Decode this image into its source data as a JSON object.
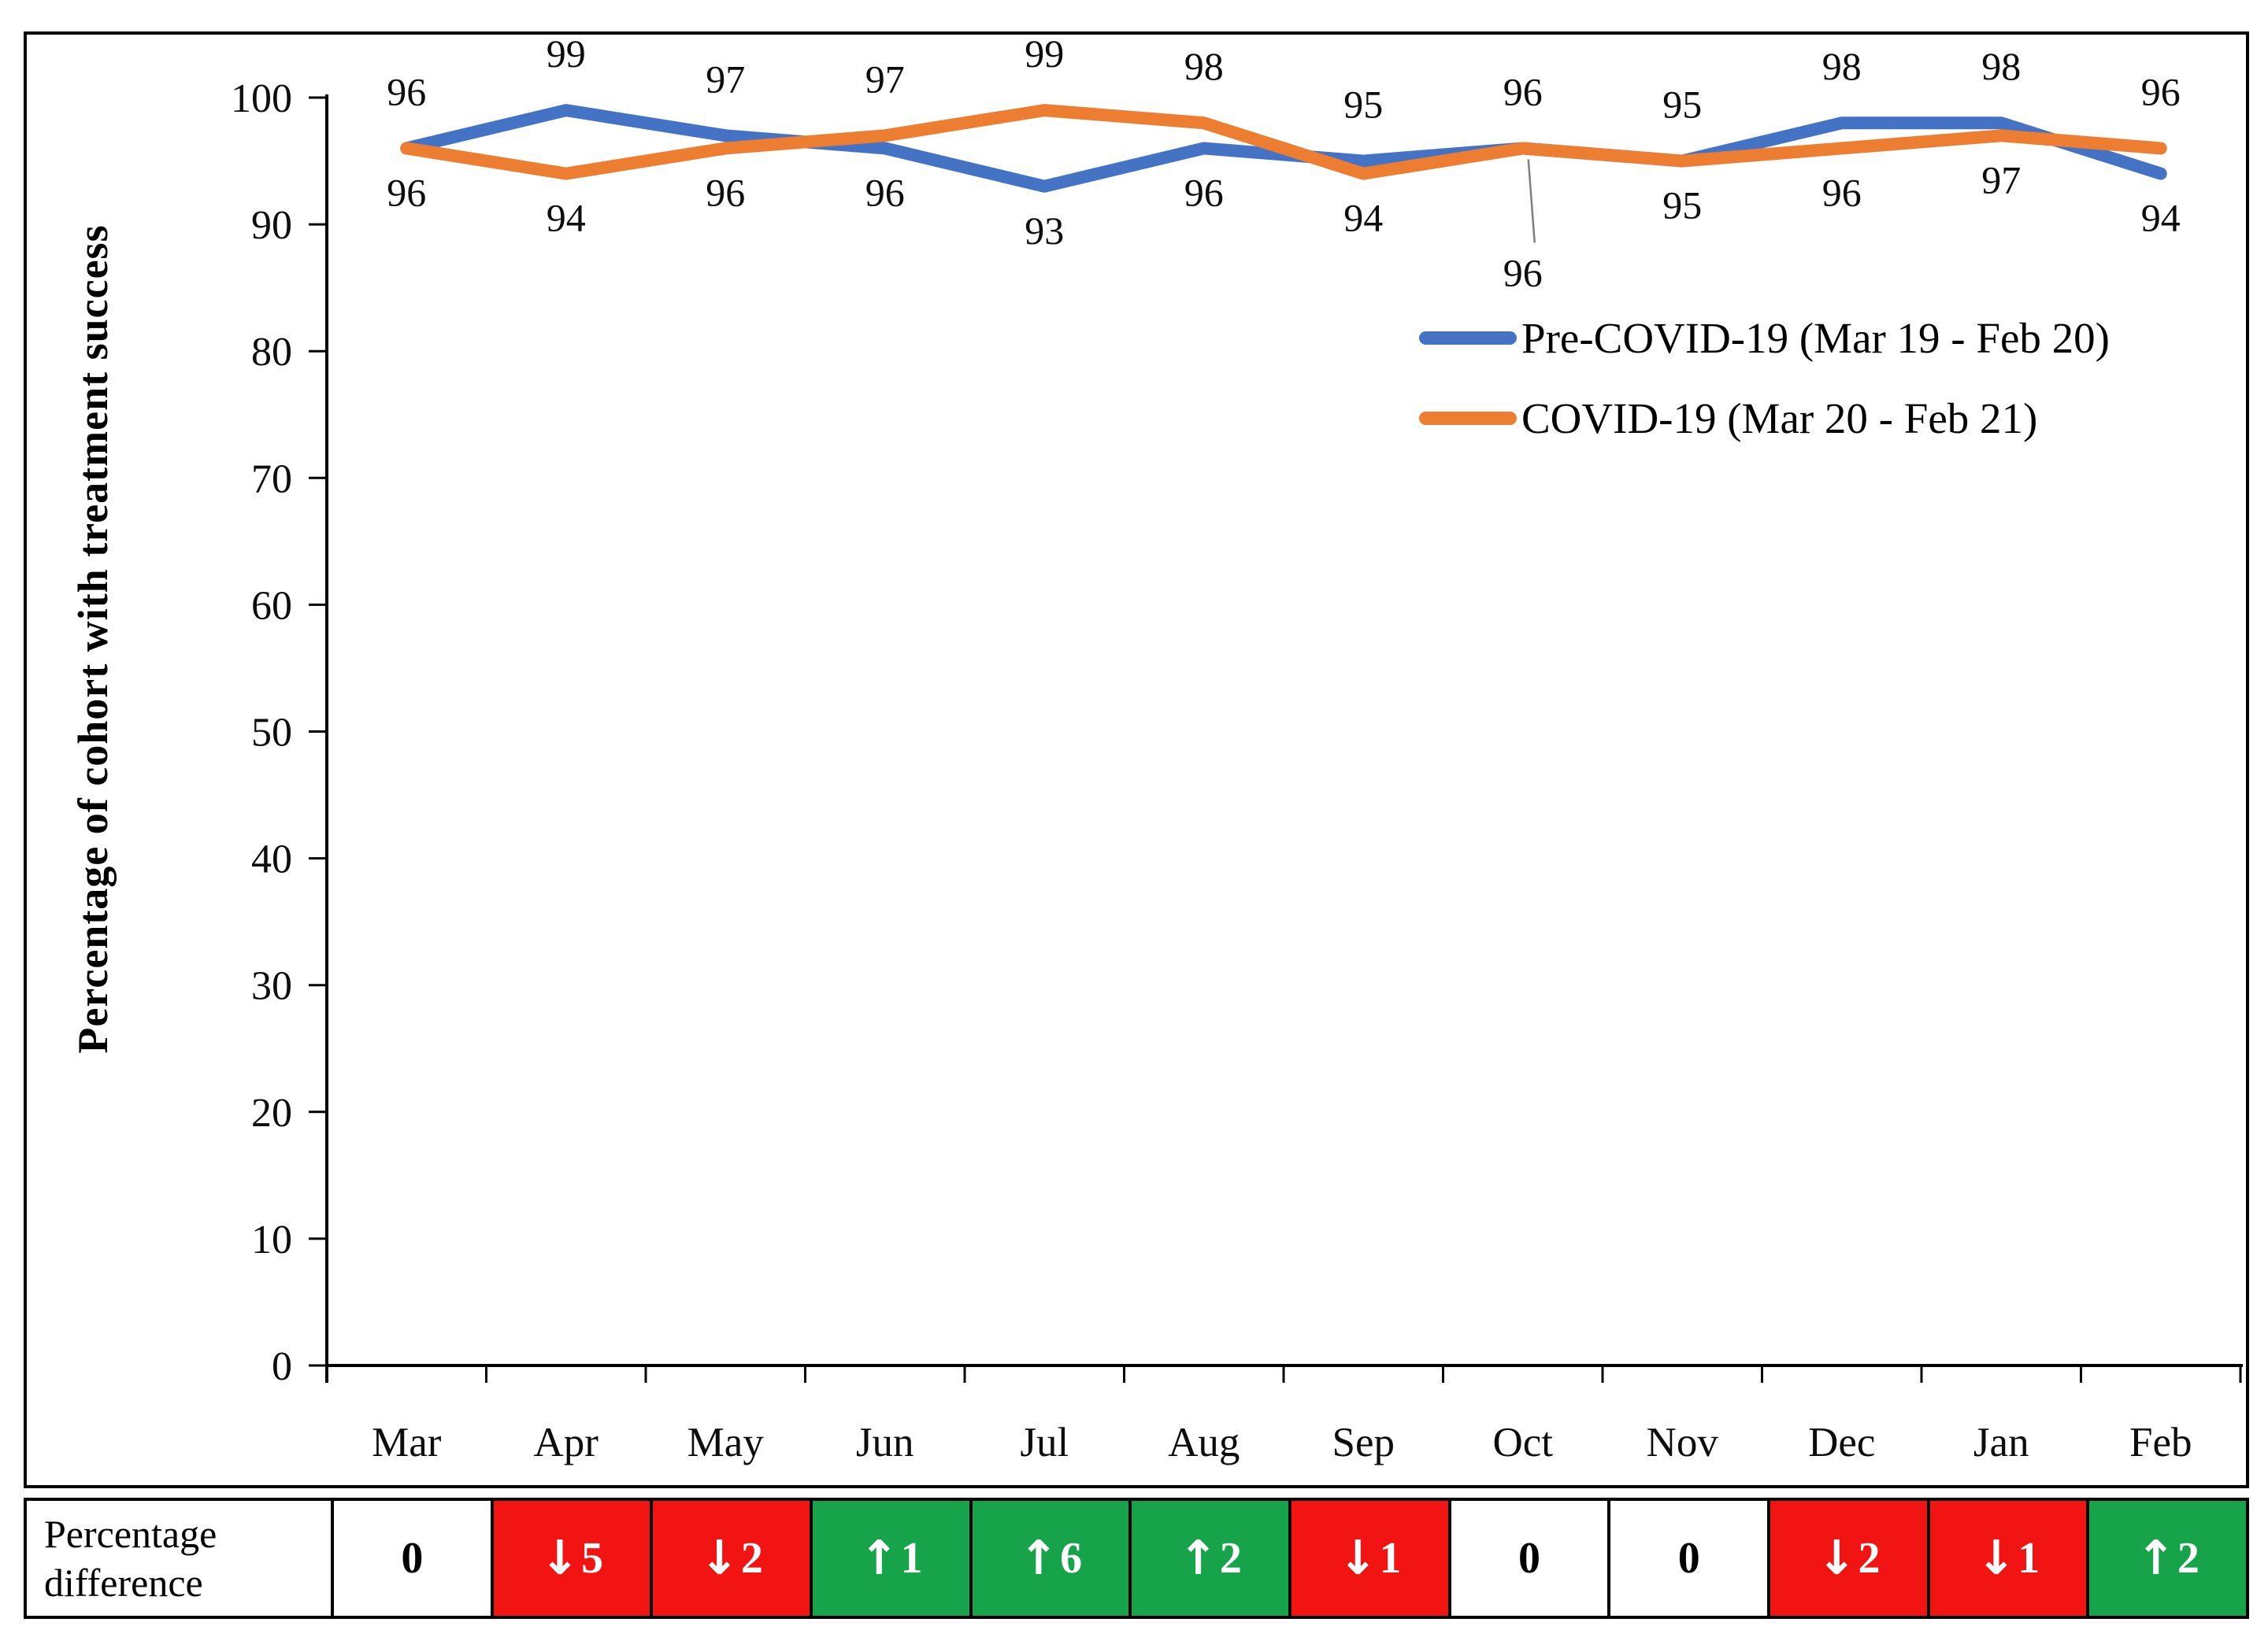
{
  "chart_data": {
    "type": "line",
    "title": "",
    "categories": [
      "Mar",
      "Apr",
      "May",
      "Jun",
      "Jul",
      "Aug",
      "Sep",
      "Oct",
      "Nov",
      "Dec",
      "Jan",
      "Feb"
    ],
    "series": [
      {
        "name": "Pre-COVID-19 (Mar 19 - Feb 20)",
        "color": "#4472C4",
        "values": [
          96,
          99,
          97,
          96,
          93,
          96,
          95,
          96,
          95,
          98,
          98,
          94
        ],
        "label_positions": [
          "above",
          "above",
          "above",
          "below",
          "below",
          "below",
          "above",
          "above",
          "above",
          "above",
          "above",
          "below"
        ]
      },
      {
        "name": "COVID-19 (Mar 20 - Feb 21)",
        "color": "#ED7D31",
        "values": [
          96,
          94,
          96,
          97,
          99,
          98,
          94,
          96,
          95,
          96,
          97,
          96
        ],
        "label_positions": [
          "below",
          "below",
          "below",
          "above",
          "above",
          "above",
          "below",
          "callout-below",
          "below",
          "below",
          "below",
          "above"
        ]
      }
    ],
    "xlabel": "",
    "ylabel": "Percentage of cohort with treatment success",
    "ylim": [
      0,
      100
    ],
    "ytick_step": 10,
    "yticks": [
      0,
      10,
      20,
      30,
      40,
      50,
      60,
      70,
      80,
      90,
      100
    ],
    "grid": false,
    "legend_position": "inside-upper-right"
  },
  "difference_row": {
    "label": "Percentage difference",
    "cells": [
      {
        "change": "none",
        "value": "0",
        "bg": "white"
      },
      {
        "change": "down",
        "value": "5",
        "bg": "red"
      },
      {
        "change": "down",
        "value": "2",
        "bg": "red"
      },
      {
        "change": "up",
        "value": "1",
        "bg": "green"
      },
      {
        "change": "up",
        "value": "6",
        "bg": "green"
      },
      {
        "change": "up",
        "value": "2",
        "bg": "green"
      },
      {
        "change": "down",
        "value": "1",
        "bg": "red"
      },
      {
        "change": "none",
        "value": "0",
        "bg": "white"
      },
      {
        "change": "none",
        "value": "0",
        "bg": "white"
      },
      {
        "change": "down",
        "value": "2",
        "bg": "red"
      },
      {
        "change": "down",
        "value": "1",
        "bg": "red"
      },
      {
        "change": "up",
        "value": "2",
        "bg": "green"
      }
    ]
  },
  "icons": {
    "up-arrow": "↑",
    "down-arrow": "↓"
  },
  "colors": {
    "red": "#F21313",
    "green": "#17A34A",
    "white": "#FFFFFF",
    "series_blue": "#4472C4",
    "series_orange": "#ED7D31",
    "axis": "#000000",
    "leader_line": "#7F7F7F",
    "cell_text_light": "#FFFFFF",
    "cell_text_dark": "#000000"
  }
}
